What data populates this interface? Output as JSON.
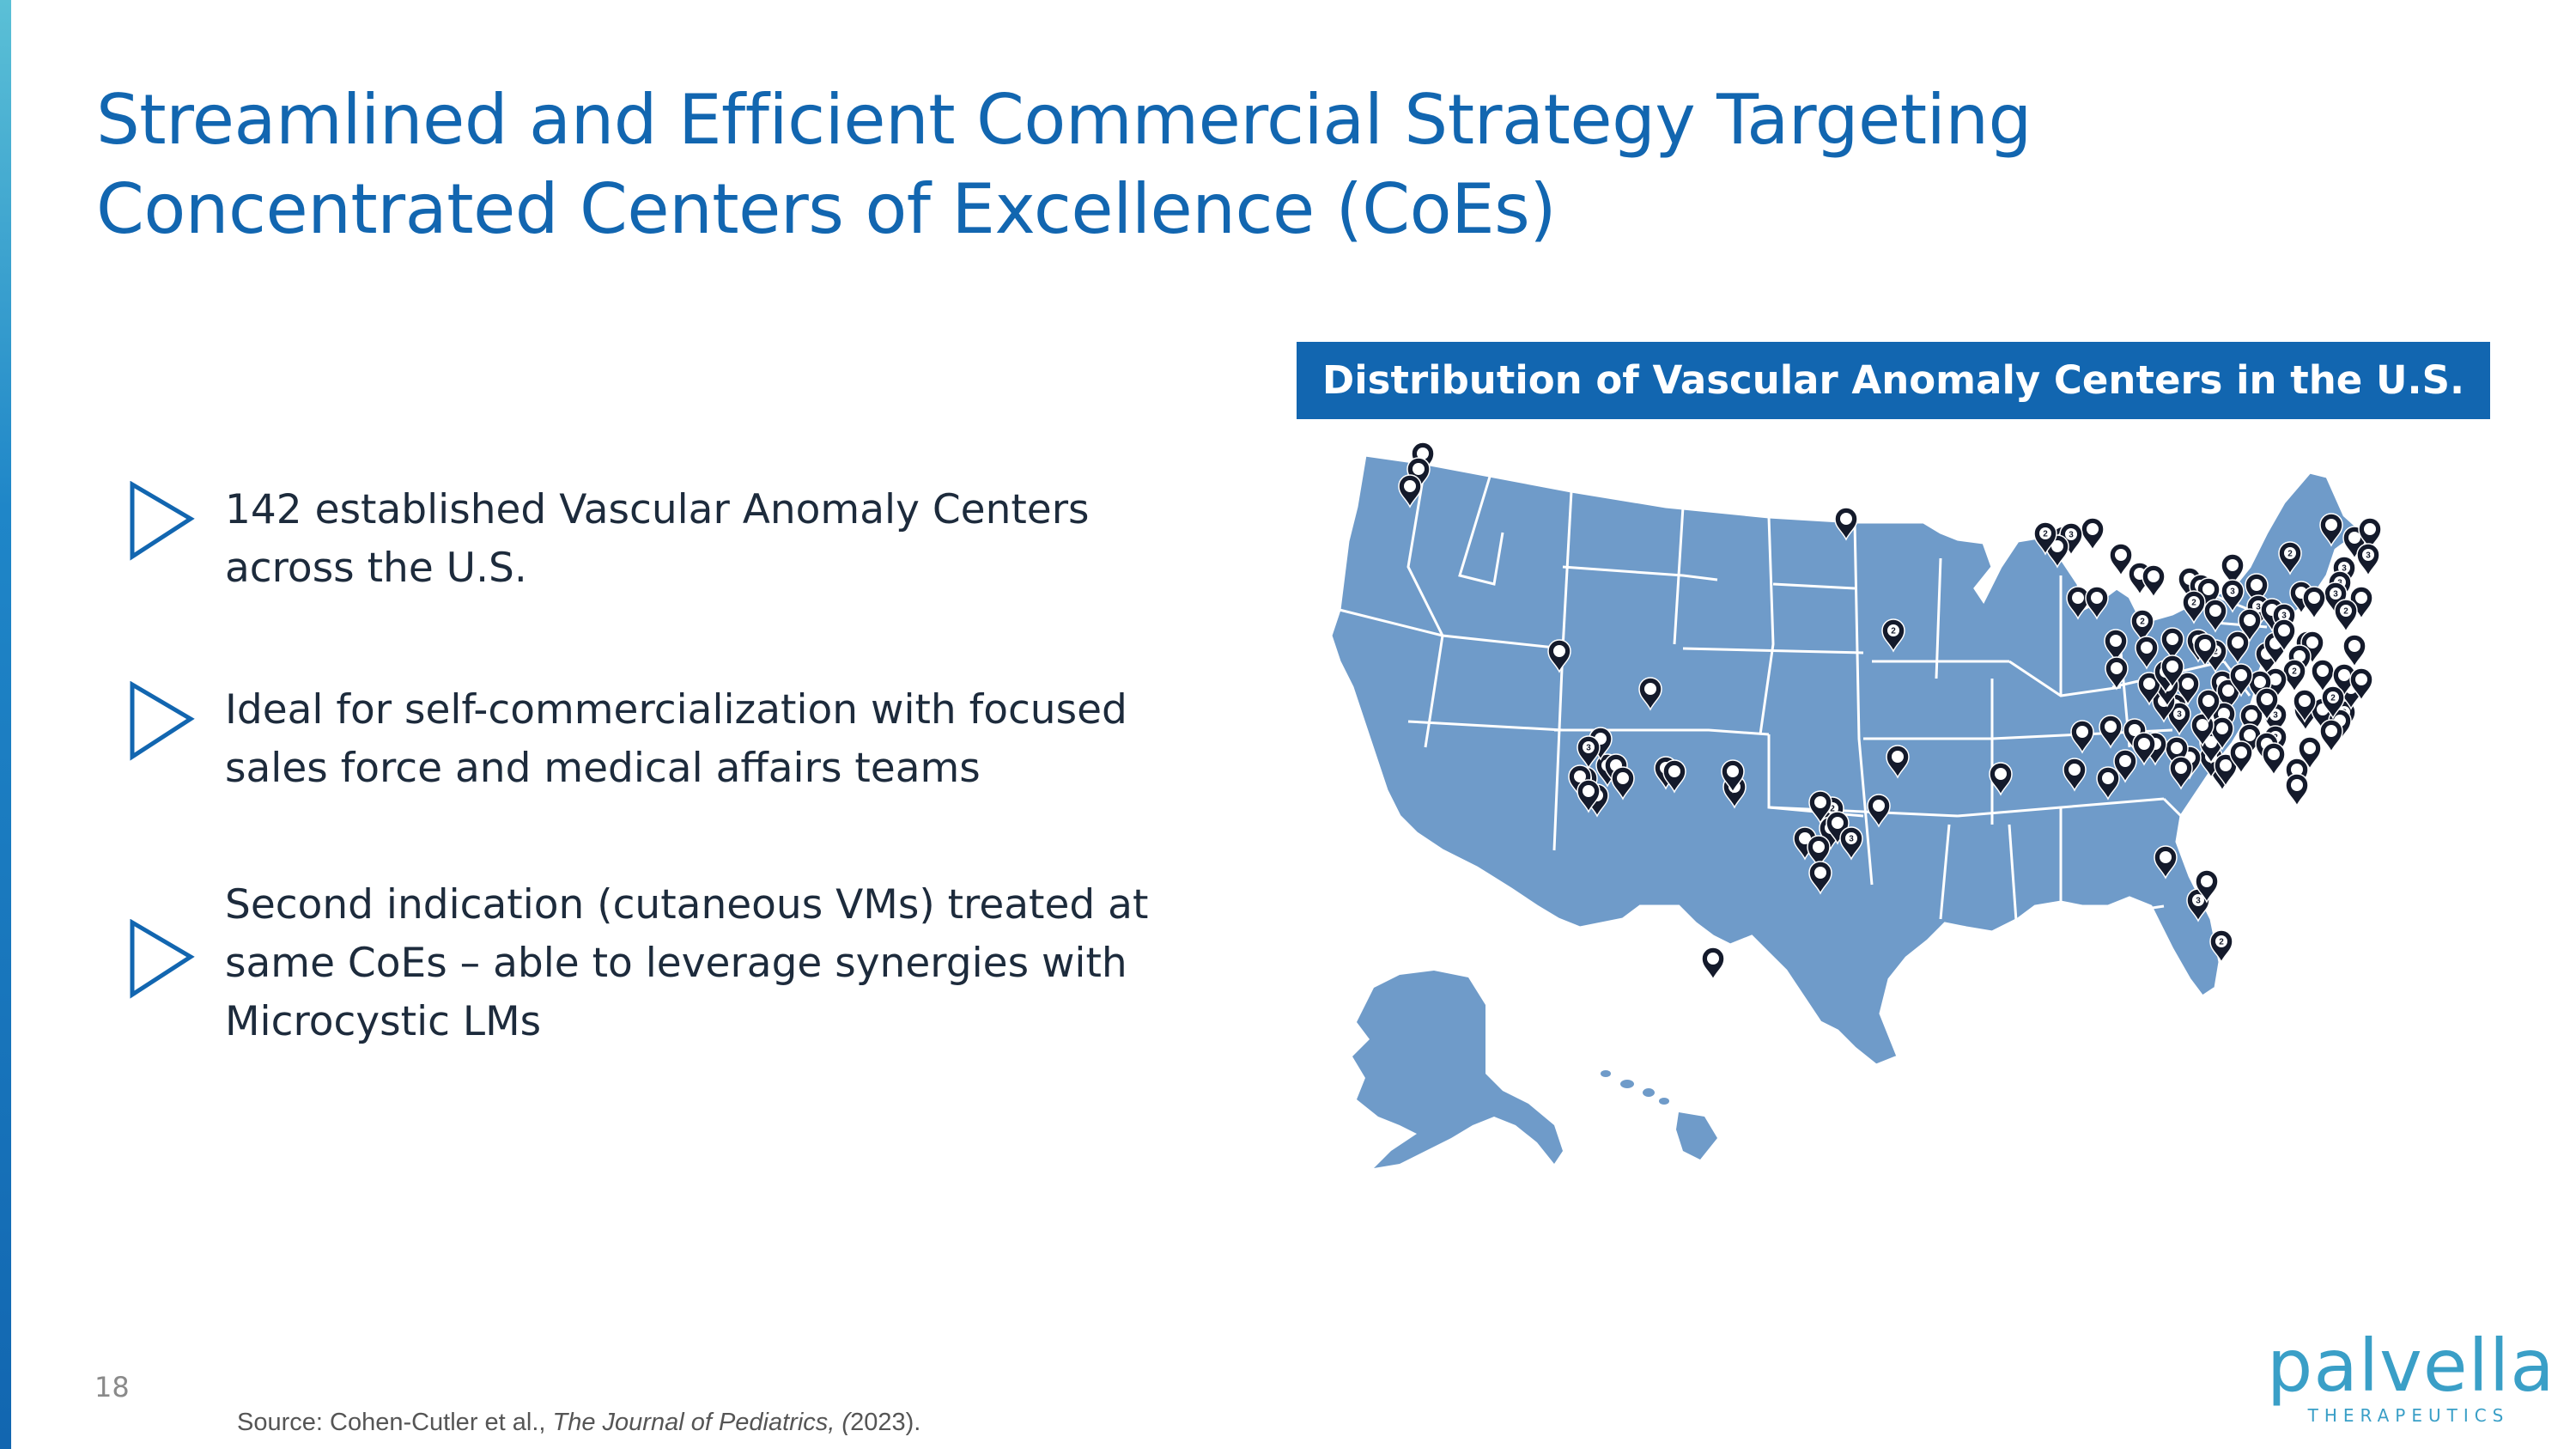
{
  "slide": {
    "title_lines": [
      "Streamlined and Efficient Commercial Strategy Targeting",
      "Concentrated Centers of Excellence (CoEs)"
    ],
    "bullets": [
      {
        "lines": [
          "142 established Vascular Anomaly Centers",
          "across the U.S."
        ]
      },
      {
        "lines": [
          "Ideal for self-commercialization with focused",
          "sales force and medical affairs teams"
        ]
      },
      {
        "lines": [
          "Second indication (cutaneous VMs) treated at",
          "same CoEs – able to leverage synergies with",
          "Microcystic LMs"
        ]
      }
    ],
    "map": {
      "title": "Distribution of Vascular Anomaly Centers in the U.S.",
      "fill_color": "#6f9bc9",
      "border_color": "#ffffff",
      "pin_color": "#141a2b",
      "pin_labels": [
        "2",
        "3"
      ]
    },
    "page_number": "18",
    "source": {
      "prefix": "Source: Cohen-Cutler et al., ",
      "journal": "The Journal of Pediatrics, (",
      "suffix": "2023)."
    },
    "logo": {
      "word": "palvella",
      "sub": "THERAPEUTICS"
    },
    "colors": {
      "accent": "#1266b0",
      "text": "#1d2b3c",
      "logo": "#3a9fc7"
    }
  }
}
